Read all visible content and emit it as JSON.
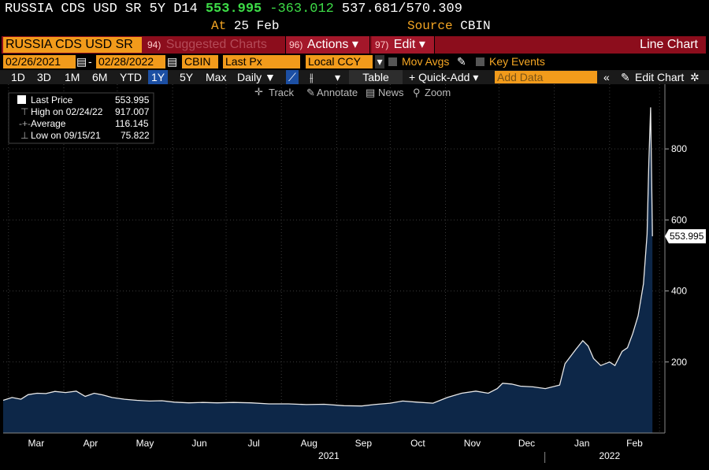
{
  "header": {
    "security": "RUSSIA CDS USD SR 5Y D14",
    "last": "553.995",
    "change": "-363.012",
    "range": "537.681/570.309",
    "at_label": "At",
    "at_value": "25 Feb",
    "source_label": "Source",
    "source_value": "CBIN"
  },
  "menu": {
    "ticker": "RUSSIA CDS USD SR",
    "suggested_num": "94)",
    "suggested": "Suggested Charts",
    "actions_num": "96)",
    "actions": "Actions ▾",
    "edit_num": "97)",
    "edit": "Edit ▾",
    "chart_type": "Line Chart"
  },
  "params": {
    "start_date": "02/26/2021",
    "end_date": "02/28/2022",
    "source": "CBIN",
    "field": "Last Px",
    "currency": "Local CCY",
    "mov_avgs": "Mov Avgs",
    "key_events": "Key Events"
  },
  "toolbar": {
    "periods": [
      "1D",
      "3D",
      "1M",
      "6M",
      "YTD",
      "1Y",
      "5Y",
      "Max"
    ],
    "selected_period": "1Y",
    "frequency": "Daily ▼",
    "table": "Table",
    "quick_add": "+ Quick-Add ▾",
    "add_data_placeholder": "Add Data",
    "edit_chart": "Edit Chart"
  },
  "chart_tools": [
    "Track",
    "Annotate",
    "News",
    "Zoom"
  ],
  "legend": [
    {
      "label": "Last Price",
      "value": "553.995"
    },
    {
      "label": "High on 02/24/22",
      "value": "917.007"
    },
    {
      "label": "Average",
      "value": "116.145"
    },
    {
      "label": "Low on 09/15/21",
      "value": "75.822"
    }
  ],
  "colors": {
    "accent": "#f29b1b",
    "menu_bg": "#8c0d1c",
    "area_fill": "#0d2748",
    "line": "#e8e8e8",
    "positive": "#3ddc47"
  },
  "chart_data": {
    "type": "area",
    "title": "",
    "xlabel": "",
    "ylabel": "",
    "ylim": [
      0,
      920
    ],
    "y_ticks": [
      200,
      400,
      600,
      800
    ],
    "x_month_labels": [
      "Mar",
      "Apr",
      "May",
      "Jun",
      "Jul",
      "Aug",
      "Sep",
      "Oct",
      "Nov",
      "Dec",
      "Jan",
      "Feb"
    ],
    "year_labels": [
      "2021",
      "2022"
    ],
    "last_label": "553.995",
    "grid": true,
    "series": [
      {
        "x": [
          "2021-02-26",
          "2021-03-03",
          "2021-03-08",
          "2021-03-12",
          "2021-03-17",
          "2021-03-22",
          "2021-03-27",
          "2021-04-02",
          "2021-04-08",
          "2021-04-13",
          "2021-04-18",
          "2021-04-23",
          "2021-04-28",
          "2021-05-05",
          "2021-05-12",
          "2021-05-19",
          "2021-05-26",
          "2021-06-02",
          "2021-06-10",
          "2021-06-18",
          "2021-06-26",
          "2021-07-05",
          "2021-07-15",
          "2021-07-25",
          "2021-08-05",
          "2021-08-15",
          "2021-08-25",
          "2021-09-05",
          "2021-09-15",
          "2021-09-22",
          "2021-10-01",
          "2021-10-08",
          "2021-10-16",
          "2021-10-25",
          "2021-11-02",
          "2021-11-10",
          "2021-11-18",
          "2021-11-25",
          "2021-11-30",
          "2021-12-03",
          "2021-12-08",
          "2021-12-13",
          "2021-12-20",
          "2021-12-27",
          "2022-01-04",
          "2022-01-07",
          "2022-01-10",
          "2022-01-13",
          "2022-01-17",
          "2022-01-20",
          "2022-01-23",
          "2022-01-27",
          "2022-02-01",
          "2022-02-04",
          "2022-02-08",
          "2022-02-11",
          "2022-02-14",
          "2022-02-17",
          "2022-02-20",
          "2022-02-22",
          "2022-02-23",
          "2022-02-24",
          "2022-02-25"
        ],
        "y": [
          92,
          100,
          95,
          108,
          112,
          111,
          117,
          114,
          118,
          103,
          112,
          107,
          100,
          95,
          92,
          90,
          91,
          87,
          85,
          86,
          85,
          86,
          85,
          82,
          82,
          80,
          81,
          77,
          76,
          80,
          84,
          90,
          87,
          84,
          100,
          112,
          118,
          112,
          125,
          140,
          138,
          132,
          130,
          125,
          135,
          195,
          215,
          235,
          260,
          245,
          210,
          190,
          200,
          190,
          230,
          240,
          280,
          330,
          420,
          560,
          760,
          917,
          554
        ]
      }
    ]
  }
}
